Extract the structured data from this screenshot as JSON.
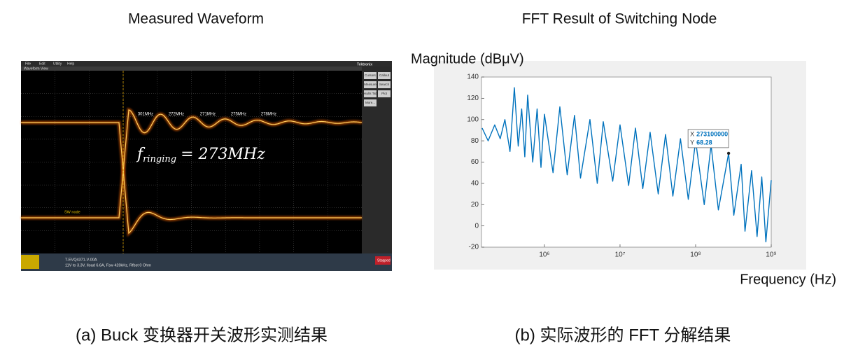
{
  "waveform_panel": {
    "title": "Measured Waveform",
    "caption": "(a) Buck 变换器开关波形实测结果",
    "brand": "Tektronix",
    "view_label": "Waveform View",
    "menu": [
      "File",
      "Edit",
      "Utility",
      "Help"
    ],
    "buttons": [
      "Cursors",
      "Callout",
      "Measure",
      "Search",
      "Results Table",
      "Plot",
      "More..."
    ],
    "ringing_labels": [
      "301MHz",
      "272MHz",
      "271MHz",
      "275MHz",
      "278MHz"
    ],
    "annotation": {
      "symbol": "f",
      "subscript": "ringing",
      "equation": "= 273MHz"
    },
    "trace_label": "SW node",
    "info": [
      "T-EVQ4371-V-00A",
      "11V to 3.3V, Iload 6.6A, Fsw 420kHz, Rfbst 0 Ohm"
    ],
    "status": "Stopped"
  },
  "chart_data": {
    "type": "line",
    "title": "FFT Result of Switching Node",
    "caption": "(b) 实际波形的 FFT 分解结果",
    "y_label": "Magnitude (dBμV)",
    "x_label": "Frequency (Hz)",
    "log_x": true,
    "xlim": [
      147000,
      1000000000
    ],
    "xticks": [
      {
        "value": 1000000,
        "label": "10⁶"
      },
      {
        "value": 10000000,
        "label": "10⁷"
      },
      {
        "value": 100000000,
        "label": "10⁸"
      },
      {
        "value": 1000000000,
        "label": "10⁹"
      }
    ],
    "ylim": [
      -20,
      140
    ],
    "yticks": [
      -20,
      0,
      20,
      40,
      60,
      80,
      100,
      120,
      140
    ],
    "x": [
      150000,
      180000,
      220000,
      260000,
      300000,
      350000,
      400000,
      450000,
      500000,
      550000,
      600000,
      700000,
      800000,
      900000,
      1000000,
      1300000,
      1600000,
      2000000,
      2500000,
      3000000,
      4000000,
      5000000,
      6000000,
      8000000,
      10000000,
      13000000,
      16000000,
      20000000,
      25000000,
      32000000,
      40000000,
      50000000,
      63000000,
      80000000,
      100000000,
      130000000,
      160000000,
      200000000,
      273100000,
      320000000,
      400000000,
      450000000,
      550000000,
      650000000,
      750000000,
      850000000,
      1000000000
    ],
    "series": [
      {
        "color": "#0072bd",
        "values": [
          92,
          80,
          95,
          82,
          100,
          70,
          130,
          75,
          110,
          65,
          123,
          60,
          110,
          55,
          105,
          50,
          112,
          48,
          104,
          45,
          100,
          40,
          98,
          42,
          95,
          38,
          92,
          35,
          88,
          30,
          86,
          28,
          82,
          25,
          80,
          20,
          76,
          15,
          68.28,
          10,
          58,
          -5,
          52,
          -10,
          46,
          -15,
          43
        ]
      }
    ],
    "datatip": {
      "x_label": "X",
      "x": 273100000,
      "y_label": "Y",
      "y": 68.28
    }
  }
}
